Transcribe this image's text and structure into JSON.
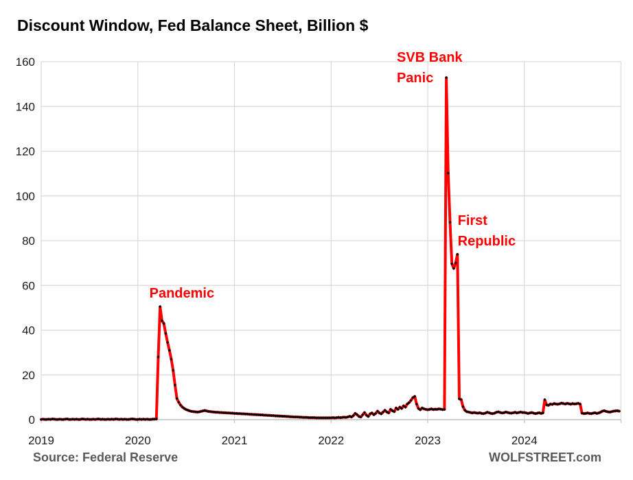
{
  "title": "Discount Window, Fed Balance Sheet, Billion $",
  "footer": {
    "source": "Source: Federal Reserve",
    "brand": "WOLFSTREET.com"
  },
  "colors": {
    "line": "#FF0000",
    "marker": "#000000",
    "annotation": "#FF0000",
    "grid": "#D9D9D9",
    "axis": "#BFBFBF",
    "tick_text": "#1a1a1a",
    "footer_text": "#595959",
    "title_text": "#000000"
  },
  "chart_data": {
    "type": "line",
    "title": "Discount Window, Fed Balance Sheet, Billion $",
    "xlabel": "",
    "ylabel": "",
    "xlim": [
      2019,
      2025
    ],
    "ylim": [
      0,
      160
    ],
    "grid": true,
    "legend": false,
    "y_ticks": [
      0,
      20,
      40,
      60,
      80,
      100,
      120,
      140,
      160
    ],
    "y_tick_labels": [
      "0",
      "20",
      "40",
      "60",
      "80",
      "100",
      "120",
      "140",
      "160"
    ],
    "x_ticks": [
      2019,
      2020,
      2021,
      2022,
      2023,
      2024
    ],
    "x_tick_labels": [
      "2019",
      "2020",
      "2021",
      "2022",
      "2023",
      "2024"
    ],
    "x_gridlines": [
      2019,
      2020,
      2021,
      2022,
      2023,
      2024,
      2025
    ],
    "x_start": 2019.0,
    "x_step": 0.0192307692,
    "marker": "diamond",
    "series": [
      {
        "values": [
          0.1,
          0.2,
          0.1,
          0.1,
          0.2,
          0.1,
          0.3,
          0.2,
          0.1,
          0.1,
          0.2,
          0.1,
          0.1,
          0.2,
          0.3,
          0.1,
          0.1,
          0.2,
          0.1,
          0.2,
          0.1,
          0.1,
          0.3,
          0.2,
          0.1,
          0.2,
          0.1,
          0.1,
          0.2,
          0.1,
          0.2,
          0.3,
          0.1,
          0.2,
          0.1,
          0.1,
          0.2,
          0.1,
          0.2,
          0.1,
          0.3,
          0.2,
          0.1,
          0.2,
          0.1,
          0.2,
          0.1,
          0.1,
          0.2,
          0.3,
          0.2,
          0.1,
          0.1,
          0.2,
          0.1,
          0.2,
          0.1,
          0.2,
          0.1,
          0.1,
          0.2,
          0.2,
          0.3,
          28.0,
          50.5,
          44.2,
          43.0,
          38.5,
          34.5,
          31.0,
          27.0,
          22.0,
          15.5,
          9.5,
          7.8,
          6.5,
          5.6,
          5.0,
          4.5,
          4.2,
          3.9,
          3.7,
          3.6,
          3.5,
          3.4,
          3.5,
          3.7,
          3.9,
          4.1,
          3.9,
          3.7,
          3.6,
          3.5,
          3.4,
          3.3,
          3.3,
          3.2,
          3.2,
          3.1,
          3.1,
          3.0,
          3.0,
          2.9,
          2.9,
          2.8,
          2.8,
          2.7,
          2.7,
          2.6,
          2.6,
          2.5,
          2.5,
          2.4,
          2.4,
          2.3,
          2.3,
          2.2,
          2.2,
          2.1,
          2.1,
          2.0,
          2.0,
          1.9,
          1.9,
          1.8,
          1.8,
          1.7,
          1.7,
          1.6,
          1.6,
          1.5,
          1.5,
          1.4,
          1.4,
          1.3,
          1.3,
          1.2,
          1.2,
          1.2,
          1.1,
          1.1,
          1.0,
          1.0,
          1.0,
          0.9,
          0.9,
          0.9,
          0.9,
          0.8,
          0.8,
          0.8,
          0.8,
          0.8,
          0.8,
          0.8,
          0.8,
          0.8,
          0.9,
          0.8,
          0.9,
          1.0,
          0.9,
          1.0,
          1.1,
          1.0,
          1.2,
          1.5,
          1.2,
          1.8,
          2.8,
          2.2,
          1.4,
          1.2,
          2.2,
          3.2,
          2.0,
          1.4,
          2.6,
          3.0,
          2.2,
          2.8,
          3.8,
          3.0,
          2.6,
          3.4,
          4.2,
          3.4,
          3.0,
          4.6,
          4.0,
          3.6,
          5.2,
          4.6,
          5.6,
          5.0,
          6.2,
          5.6,
          7.0,
          7.6,
          8.6,
          9.8,
          10.4,
          7.0,
          5.0,
          4.4,
          5.2,
          4.8,
          4.6,
          4.4,
          4.6,
          4.8,
          4.5,
          4.7,
          4.6,
          4.8,
          4.7,
          4.5,
          4.6,
          152.9,
          110.2,
          88.2,
          69.7,
          67.6,
          70.0,
          73.9,
          9.3,
          9.0,
          5.8,
          4.2,
          3.6,
          3.4,
          3.2,
          3.0,
          3.2,
          3.0,
          2.9,
          3.1,
          2.8,
          2.7,
          2.9,
          3.3,
          3.1,
          2.8,
          2.7,
          2.9,
          3.3,
          3.5,
          3.2,
          3.0,
          3.1,
          3.4,
          3.2,
          3.0,
          2.9,
          3.1,
          3.3,
          3.0,
          3.2,
          3.4,
          3.2,
          3.2,
          3.0,
          2.8,
          3.0,
          3.2,
          2.9,
          2.7,
          2.9,
          3.1,
          2.8,
          3.0,
          8.9,
          6.6,
          6.4,
          7.0,
          6.8,
          7.2,
          7.0,
          6.9,
          7.1,
          7.4,
          7.2,
          7.0,
          7.3,
          7.1,
          6.9,
          7.2,
          7.0,
          7.1,
          7.3,
          7.0,
          2.9,
          2.7,
          2.8,
          3.0,
          2.8,
          2.7,
          2.9,
          3.1,
          2.8,
          3.0,
          3.3,
          3.8,
          4.0,
          3.7,
          3.5,
          3.4,
          3.6,
          3.8,
          3.9,
          4.0,
          3.8
        ]
      }
    ],
    "annotations": [
      {
        "id": "pandemic",
        "lines": [
          "Pandemic"
        ],
        "x": 2020.12,
        "y": 58.9,
        "color": "#FF0000"
      },
      {
        "id": "svb-bank-panic",
        "lines": [
          "SVB Bank",
          "Panic"
        ],
        "x": 2022.68,
        "y": 164.3,
        "color": "#FF0000"
      },
      {
        "id": "first-republic",
        "lines": [
          "First",
          "Republic"
        ],
        "x": 2023.31,
        "y": 91.3,
        "color": "#FF0000"
      }
    ]
  }
}
